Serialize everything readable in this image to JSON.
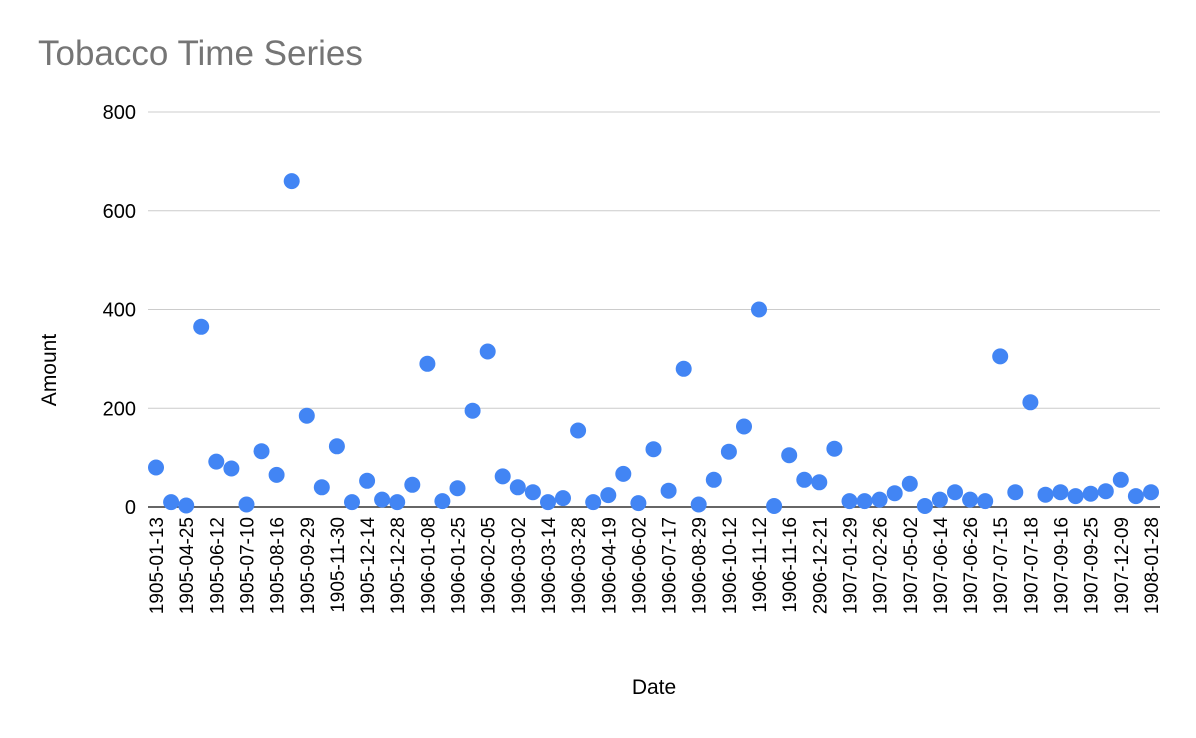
{
  "chart_data": {
    "type": "scatter",
    "title": "Tobacco Time Series",
    "xlabel": "Date",
    "ylabel": "Amount",
    "ylim": [
      0,
      800
    ],
    "yticks": [
      0,
      200,
      400,
      600,
      800
    ],
    "grid": true,
    "legend": "none",
    "point_color": "#4285f4",
    "x_tick_labels": [
      "1905-01-13",
      "1905-04-25",
      "1905-06-12",
      "1905-07-10",
      "1905-08-16",
      "1905-09-29",
      "1905-11-30",
      "1905-12-14",
      "1905-12-28",
      "1906-01-08",
      "1906-01-25",
      "1906-02-05",
      "1906-03-02",
      "1906-03-14",
      "1906-03-28",
      "1906-04-19",
      "1906-06-02",
      "1906-07-17",
      "1906-08-29",
      "1906-10-12",
      "1906-11-12",
      "1906-11-16",
      "2906-12-21",
      "1907-01-29",
      "1907-02-26",
      "1907-05-02",
      "1907-06-14",
      "1907-06-26",
      "1907-07-15",
      "1907-07-18",
      "1907-09-16",
      "1907-09-25",
      "1907-12-09",
      "1908-01-28"
    ],
    "values": [
      80,
      10,
      3,
      365,
      92,
      78,
      5,
      113,
      65,
      660,
      185,
      40,
      123,
      10,
      53,
      15,
      10,
      45,
      290,
      12,
      38,
      195,
      315,
      62,
      40,
      30,
      10,
      18,
      155,
      10,
      24,
      67,
      8,
      117,
      33,
      280,
      5,
      55,
      112,
      163,
      400,
      2,
      105,
      55,
      50,
      118,
      12,
      12,
      15,
      28,
      47,
      2,
      15,
      30,
      15,
      12,
      305,
      30,
      212,
      25,
      30,
      22,
      27,
      32,
      55,
      22,
      30
    ]
  }
}
